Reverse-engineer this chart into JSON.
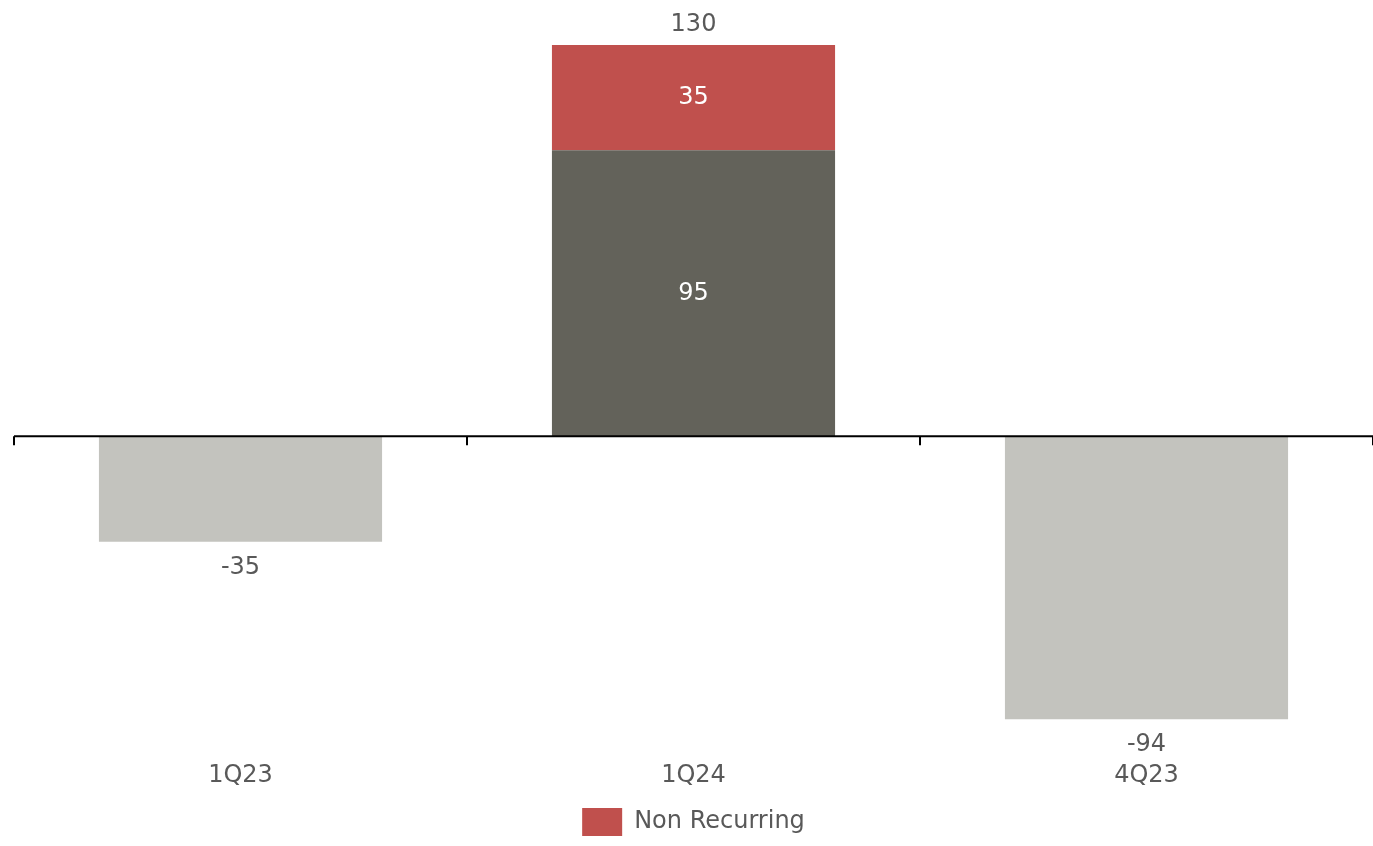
{
  "chart_data": {
    "type": "bar",
    "stacked": true,
    "categories": [
      "1Q23",
      "1Q24",
      "4Q23"
    ],
    "series": [
      {
        "colors": [
          "#c3c3be",
          "#63625a",
          "#c3c3be"
        ],
        "values": [
          -35,
          95,
          -94
        ]
      },
      {
        "name": "Non Recurring",
        "color": "#c0504d",
        "values": [
          null,
          35,
          null
        ]
      }
    ],
    "data_labels": true,
    "totals": [
      null,
      "130",
      null
    ],
    "legend": "bottom",
    "grid": false
  }
}
